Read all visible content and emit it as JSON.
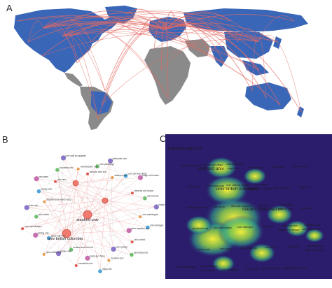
{
  "labels": {
    "a": "A",
    "b": "B",
    "c": "C"
  },
  "colors": {
    "ocean": "#ffffff",
    "highlight_land": "#3a66b8",
    "other_land": "#8a8a8a",
    "link": "#e46a63",
    "hub": "#f07a6e",
    "heat_bg": "#2a1f6e",
    "heat_mid": "#2fa48c",
    "heat_hot": "#f4ec3a"
  },
  "network_b": {
    "hub_labels": [
      "stanford univ",
      "univ british columbia"
    ],
    "node_labels": [
      "harvard med sch",
      "univ pittsburgh",
      "dalhousie univ",
      "stanford univ",
      "univ calif san diego",
      "kings coll london",
      "imperial coll london",
      "univ toronto",
      "mcgill univ",
      "univ washington",
      "univ michigan",
      "johns hopkins univ",
      "univ oxford",
      "karolinska inst",
      "univ sydney",
      "monash univ",
      "mayo clin",
      "mass gen hosp",
      "vanderbilt univ",
      "cedars sinai med ctr",
      "leiden univ",
      "univ melbourne",
      "seoul natl univ",
      "peking univ",
      "univ copenhagen",
      "univ zurich",
      "duke univ",
      "brigham & womens hosp",
      "emory univ",
      "univ penn",
      "yale univ",
      "columbia univ",
      "univ calif los angeles",
      "northwestern univ"
    ]
  },
  "density_c": {
    "labels": [
      "harvard med sch",
      "stanford univ",
      "univ british columbia",
      "cedars sinai med ctr",
      "imperial coll london",
      "kings coll london",
      "univ toronto",
      "mcgill univ",
      "shanghai jiao tong univ",
      "zhejiang univ",
      "sun yat sen univ",
      "fudan univ",
      "univ melbourne",
      "univ sydney",
      "seoul natl univ",
      "yonsei univ",
      "karolinska inst",
      "univ oxford",
      "leiden univ",
      "univ zurich",
      "mayo clin",
      "johns hopkins univ",
      "univ washington",
      "univ pittsburgh",
      "brigham & womens hosp",
      "mass gen hosp",
      "duke univ",
      "univ penn",
      "univ michigan",
      "emory univ",
      "nanjing med univ",
      "capital med univ",
      "univ hong kong",
      "natl univ singapore",
      "univ tokyo",
      "kyoto univ",
      "univ copenhagen",
      "univ calif san diego",
      "univ calif los angeles",
      "yale univ",
      "columbia univ",
      "vanderbilt univ",
      "univ Wimnipeg",
      "dalhousie univ",
      "univ montreal",
      "univ alberta",
      "mcmaster univ"
    ]
  }
}
